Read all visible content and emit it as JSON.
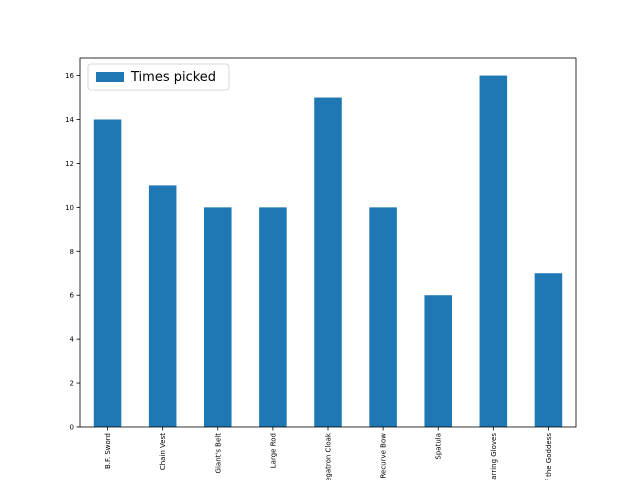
{
  "chart_data": {
    "type": "bar",
    "categories": [
      "B.F. Sword",
      "Chain Vest",
      "Giant's Belt",
      "Large Rod",
      "Negatron Cloak",
      "Recurve Bow",
      "Spatula",
      "Sparring Gloves",
      "Tear of the Goddess"
    ],
    "series": [
      {
        "name": "Times picked",
        "color": "#1f77b4",
        "values": [
          14,
          11,
          10,
          10,
          15,
          10,
          6,
          16,
          7
        ]
      }
    ],
    "ylim": [
      0,
      16.8
    ],
    "yticks": [
      0,
      2,
      4,
      6,
      8,
      10,
      12,
      14,
      16
    ],
    "legend": "upper left",
    "grid": false
  }
}
